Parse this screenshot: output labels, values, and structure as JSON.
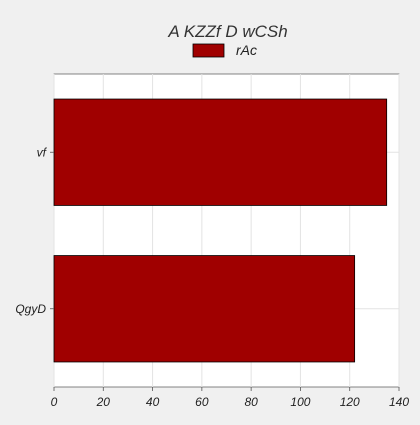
{
  "chart_data": {
    "type": "bar",
    "orientation": "horizontal",
    "title": "A KZZf  D wCSh",
    "categories": [
      "vf",
      "QgyD"
    ],
    "series": [
      {
        "name": "rAc",
        "values": [
          135,
          122
        ],
        "color": "#a00000"
      }
    ],
    "xlim": [
      0,
      140
    ],
    "xticks": [
      0,
      20,
      40,
      60,
      80,
      100,
      120,
      140
    ],
    "grid": true,
    "legend_position": "top-center",
    "plot_background": "#ffffff",
    "figure_background": "#f0f0f0"
  }
}
